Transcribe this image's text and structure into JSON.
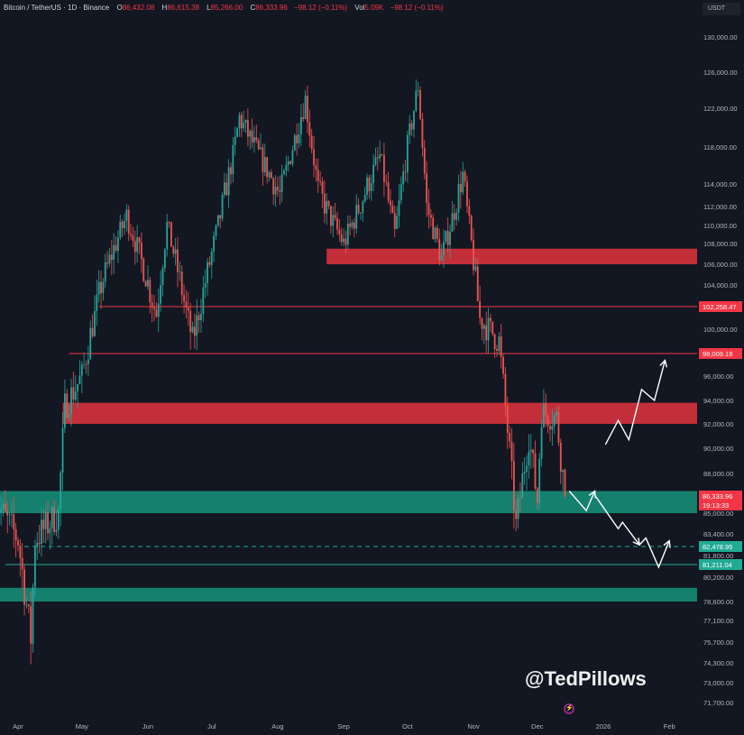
{
  "header": {
    "symbol": "Bitcoin / TetherUS · 1D · Binance",
    "o_label": "O",
    "o": "86,432.08",
    "h_label": "H",
    "h": "86,615.38",
    "l_label": "L",
    "l": "85,266.00",
    "c_label": "C",
    "c": "86,333.96",
    "change": "−98.12 (−0.11%)",
    "vol_label": "Vol",
    "vol": "5.09K",
    "vol_change": "−98.12 (−0.11%)"
  },
  "currency": "USDT",
  "watermark": "@TedPillows",
  "colors": {
    "bg": "#131722",
    "up": "#26a69a",
    "down": "#ef5350",
    "red_zone": "#d2323c",
    "teal_zone": "#168a75",
    "line_red": "#f23645",
    "line_teal": "#22ab94"
  },
  "chart_data": {
    "type": "candlestick",
    "title": "Bitcoin / TetherUS · 1D · Binance",
    "start_date": "2025-03-21",
    "last_date": "2025-12-14",
    "price_path": [
      [
        "2025-03-21",
        86000
      ],
      [
        "2025-04-01",
        83000
      ],
      [
        "2025-04-07",
        76000
      ],
      [
        "2025-04-09",
        83000
      ],
      [
        "2025-04-20",
        85000
      ],
      [
        "2025-04-23",
        93500
      ],
      [
        "2025-05-01",
        96000
      ],
      [
        "2025-05-10",
        104000
      ],
      [
        "2025-05-22",
        111000
      ],
      [
        "2025-06-05",
        101500
      ],
      [
        "2025-06-10",
        110000
      ],
      [
        "2025-06-22",
        99000
      ],
      [
        "2025-07-01",
        107000
      ],
      [
        "2025-07-11",
        117000
      ],
      [
        "2025-07-14",
        121000
      ],
      [
        "2025-08-02",
        113000
      ],
      [
        "2025-08-14",
        123000
      ],
      [
        "2025-08-20",
        113500
      ],
      [
        "2025-09-01",
        108000
      ],
      [
        "2025-09-18",
        117000
      ],
      [
        "2025-09-25",
        109000
      ],
      [
        "2025-10-01",
        118000
      ],
      [
        "2025-10-06",
        124500
      ],
      [
        "2025-10-10",
        112000
      ],
      [
        "2025-10-17",
        106500
      ],
      [
        "2025-10-27",
        115000
      ],
      [
        "2025-11-04",
        101000
      ],
      [
        "2025-11-13",
        99000
      ],
      [
        "2025-11-21",
        84000
      ],
      [
        "2025-11-27",
        91000
      ],
      [
        "2025-12-01",
        86000
      ],
      [
        "2025-12-03",
        93000
      ],
      [
        "2025-12-10",
        92500
      ],
      [
        "2025-12-14",
        86333.96
      ]
    ],
    "y_ticks": [
      130000,
      126000,
      122000,
      118000,
      114000,
      112000,
      110000,
      108000,
      106000,
      104000,
      100000,
      96000,
      94000,
      92000,
      90000,
      88000,
      85000,
      83400,
      81800,
      80200,
      78600,
      77100,
      75700,
      74300,
      73000,
      71700
    ],
    "y_tick_labels": [
      "130,000.00",
      "126,000.00",
      "122,000.00",
      "118,000.00",
      "114,000.00",
      "112,000.00",
      "110,000.00",
      "108,000.00",
      "106,000.00",
      "104,000.00",
      "100,000.00",
      "96,000.00",
      "94,000.00",
      "92,000.00",
      "90,000.00",
      "88,000.00",
      "85,000.00",
      "83,400.00",
      "81,800.00",
      "80,200.00",
      "78,600.00",
      "77,100.00",
      "75,700.00",
      "74,300.00",
      "73,000.00",
      "71,700.00"
    ],
    "x_ticks": [
      {
        "label": "Apr",
        "date": "2025-04-01"
      },
      {
        "label": "May",
        "date": "2025-05-01"
      },
      {
        "label": "Jun",
        "date": "2025-06-01"
      },
      {
        "label": "Jul",
        "date": "2025-07-01"
      },
      {
        "label": "Aug",
        "date": "2025-08-01"
      },
      {
        "label": "Sep",
        "date": "2025-09-01"
      },
      {
        "label": "Oct",
        "date": "2025-10-01"
      },
      {
        "label": "Nov",
        "date": "2025-11-01"
      },
      {
        "label": "Dec",
        "date": "2025-12-01"
      },
      {
        "label": "2026",
        "date": "2026-01-01"
      },
      {
        "label": "Feb",
        "date": "2026-02-01"
      }
    ],
    "zones": [
      {
        "type": "resistance",
        "from": 106000,
        "to": 107500,
        "start": "2025-08-24"
      },
      {
        "type": "resistance",
        "from": 92000,
        "to": 93800,
        "start": "2025-04-22"
      },
      {
        "type": "support",
        "from": 85000,
        "to": 86700,
        "start": "2025-03-01"
      },
      {
        "type": "support",
        "from": 78600,
        "to": 79500,
        "start": "2025-03-01"
      }
    ],
    "levels": [
      {
        "price": 102258.47,
        "label": "102,258.47",
        "style": "solid",
        "color": "red",
        "start": "2025-05-09"
      },
      {
        "price": 98009.19,
        "label": "98,009.19",
        "style": "solid",
        "color": "red",
        "start": "2025-04-25"
      },
      {
        "price": 82478.95,
        "label": "82,478.95",
        "style": "dashed",
        "color": "teal",
        "start": "2025-04-04"
      },
      {
        "price": 81211.04,
        "label": "81,211.04",
        "style": "solid",
        "color": "teal",
        "start": "2025-03-26"
      }
    ],
    "last_price": {
      "price": 86333.96,
      "label": "86,333.96",
      "countdown": "19:13:33"
    },
    "scenarios": [
      {
        "name": "bullish",
        "points": [
          [
            "2026-01-02",
            90300
          ],
          [
            "2026-01-08",
            92300
          ],
          [
            "2026-01-13",
            90700
          ],
          [
            "2026-01-19",
            94900
          ],
          [
            "2026-01-25",
            94000
          ],
          [
            "2026-01-30",
            97400
          ]
        ]
      },
      {
        "name": "bearish-a",
        "points": [
          [
            "2025-12-16",
            86700
          ],
          [
            "2025-12-24",
            85200
          ],
          [
            "2025-12-28",
            86700
          ]
        ]
      },
      {
        "name": "bearish-b",
        "points": [
          [
            "2025-12-28",
            86400
          ],
          [
            "2026-01-08",
            83800
          ],
          [
            "2026-01-10",
            84300
          ],
          [
            "2026-01-18",
            82600
          ]
        ]
      },
      {
        "name": "bearish-c",
        "points": [
          [
            "2026-01-18",
            82600
          ],
          [
            "2026-01-21",
            83100
          ],
          [
            "2026-01-27",
            81000
          ],
          [
            "2026-02-01",
            82900
          ]
        ]
      }
    ]
  }
}
